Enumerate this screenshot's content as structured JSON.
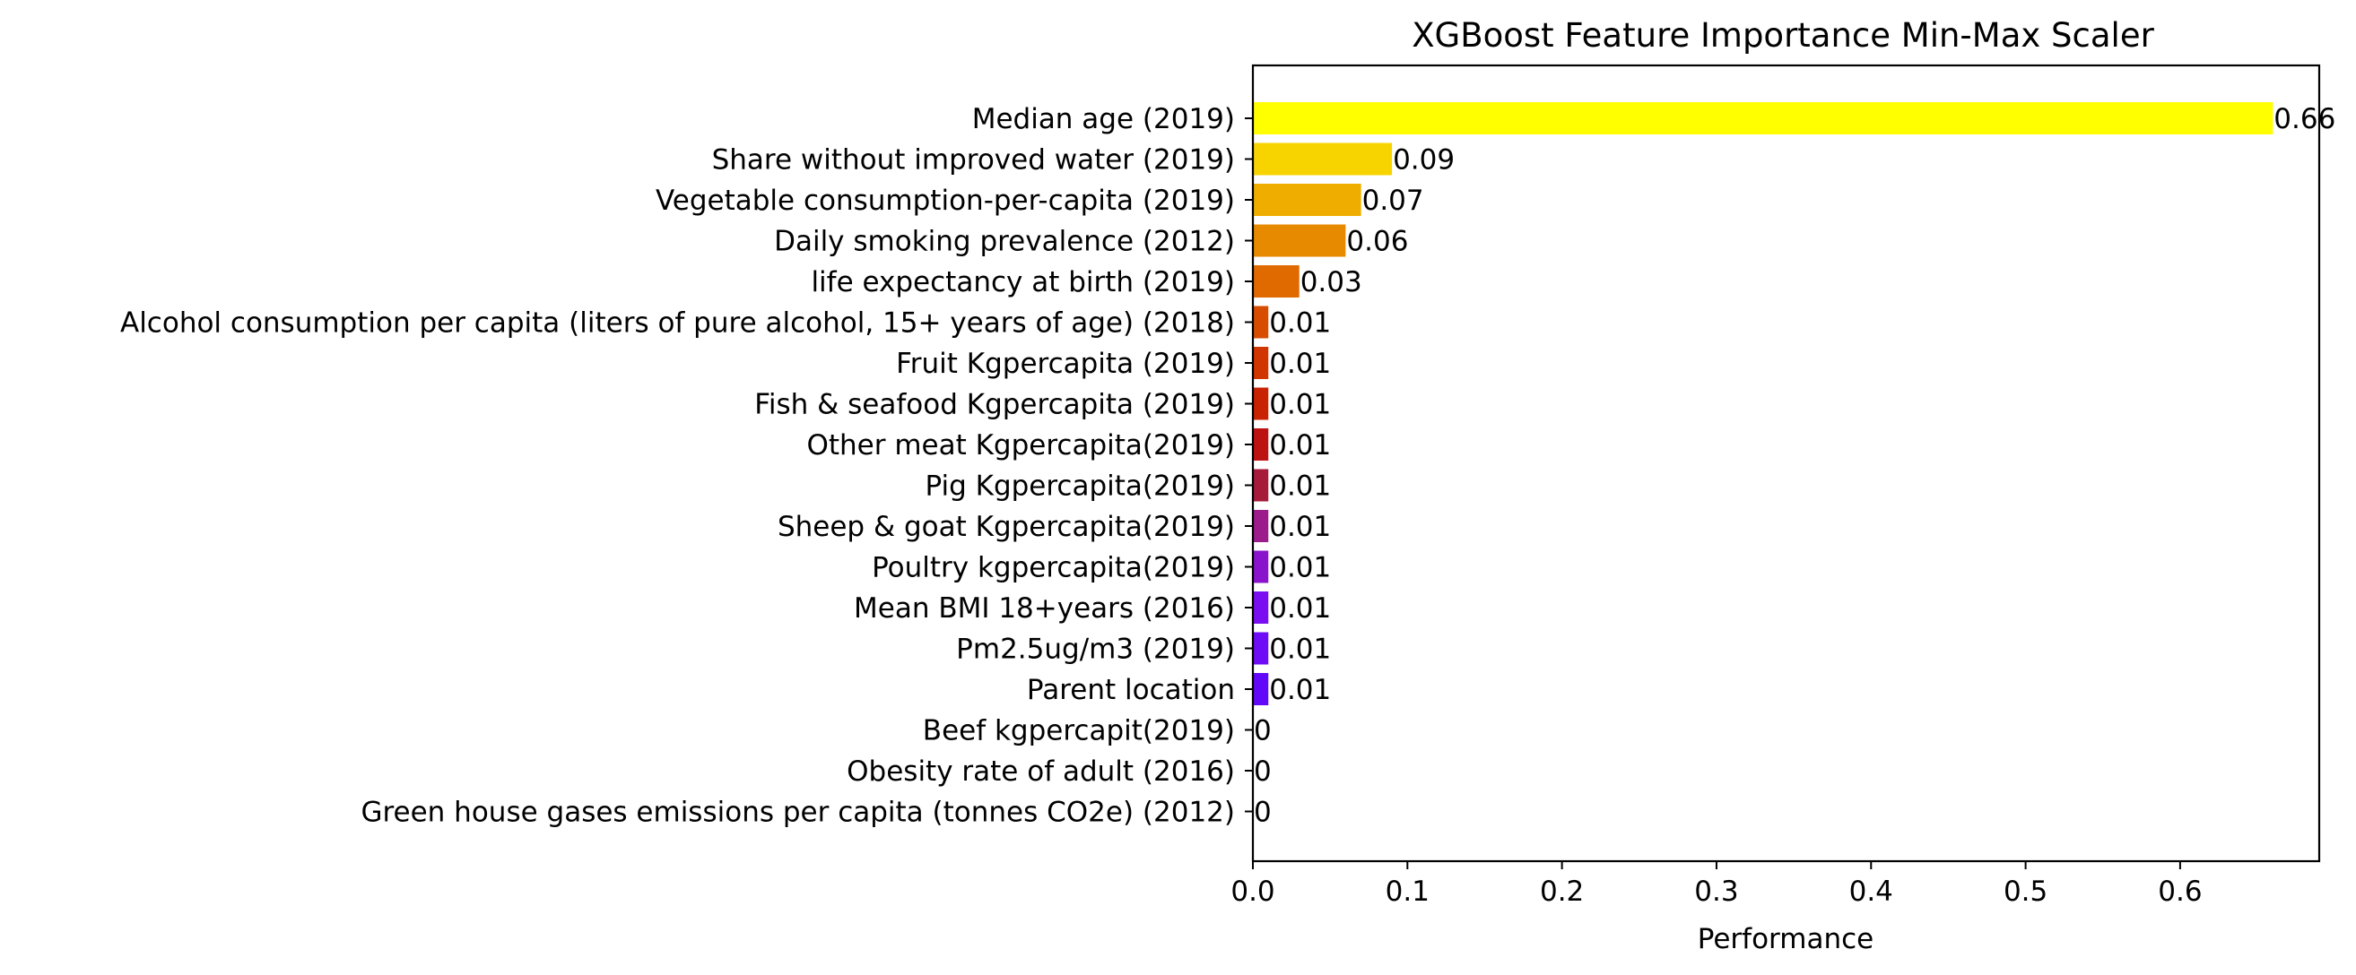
{
  "chart_data": {
    "type": "bar",
    "orientation": "horizontal",
    "title": "XGBoost Feature Importance Min-Max Scaler",
    "xlabel": "Performance",
    "ylabel": "",
    "xlim": [
      0,
      0.69
    ],
    "xticks": [
      "0.0",
      "0.1",
      "0.2",
      "0.3",
      "0.4",
      "0.5",
      "0.6"
    ],
    "grid": false,
    "categories": [
      "Median age (2019)",
      "Share without improved water (2019)",
      "Vegetable consumption-per-capita (2019)",
      "Daily smoking prevalence (2012)",
      "life expectancy at birth (2019)",
      "Alcohol consumption per capita (liters of pure alcohol, 15+ years of age) (2018)",
      "Fruit Kgpercapita (2019)",
      "Fish & seafood Kgpercapita (2019)",
      "Other meat Kgpercapita(2019)",
      "Pig Kgpercapita(2019)",
      "Sheep & goat Kgpercapita(2019)",
      "Poultry kgpercapita(2019)",
      "Mean BMI 18+years (2016)",
      "Pm2.5ug/m3 (2019)",
      "Parent location",
      "Beef kgpercapit(2019)",
      "Obesity rate of adult (2016)",
      "Green house gases emissions per capita (tonnes CO2e) (2012)"
    ],
    "values": [
      0.66,
      0.09,
      0.07,
      0.06,
      0.03,
      0.01,
      0.01,
      0.01,
      0.01,
      0.01,
      0.01,
      0.01,
      0.01,
      0.01,
      0.01,
      0,
      0,
      0
    ],
    "value_labels": [
      "0.66",
      "0.09",
      "0.07",
      "0.06",
      "0.03",
      "0.01",
      "0.01",
      "0.01",
      "0.01",
      "0.01",
      "0.01",
      "0.01",
      "0.01",
      "0.01",
      "0.01",
      "0",
      "0",
      "0"
    ],
    "colors": [
      "#ffff00",
      "#f7d400",
      "#efad00",
      "#e88a00",
      "#e06a00",
      "#d84c00",
      "#d13500",
      "#c92200",
      "#bd1212",
      "#a61a3a",
      "#9c1c8c",
      "#8a14cc",
      "#7a0ef0",
      "#6e0cf6",
      "#6208f8",
      "#5506f8",
      "#4a04f8",
      "#3f02f8"
    ]
  }
}
